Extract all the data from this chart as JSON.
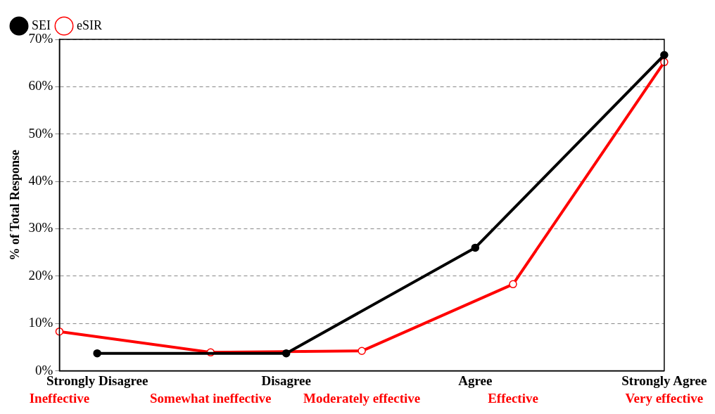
{
  "chart_data": {
    "type": "line",
    "ylabel": "% of Total Response",
    "categories": [
      "Ineffective",
      "Strongly Disagree",
      null,
      null,
      "Somewhat ineffective",
      null,
      "Disagree",
      null,
      "Moderately effective",
      null,
      null,
      "Agree",
      "Effective",
      null,
      null,
      null,
      "Strongly Agree"
    ],
    "annotations": [
      "Very effective"
    ],
    "ylim": [
      0,
      70
    ],
    "yticks": [
      {
        "value": 0,
        "label": "0%"
      },
      {
        "value": 10,
        "label": "10%"
      },
      {
        "value": 20,
        "label": "20%"
      },
      {
        "value": 30,
        "label": "30%"
      },
      {
        "value": 40,
        "label": "40%"
      },
      {
        "value": 50,
        "label": "50%"
      },
      {
        "value": 60,
        "label": "60%"
      },
      {
        "value": 70,
        "label": "70%"
      }
    ],
    "grid": "y",
    "legend": "top left",
    "marker": "circle",
    "line_style": "solid",
    "series": [
      {
        "name": "SEI",
        "color": "#000000",
        "values": [
          null,
          3.7,
          null,
          null,
          null,
          null,
          3.7,
          null,
          null,
          null,
          null,
          26,
          null,
          null,
          null,
          null,
          66.7
        ]
      },
      {
        "name": "eSIR",
        "color": "#ff0000",
        "values": [
          8.3,
          null,
          null,
          null,
          3.9,
          null,
          null,
          null,
          4.2,
          null,
          null,
          null,
          18.3,
          null,
          null,
          null,
          65.2
        ]
      }
    ]
  }
}
